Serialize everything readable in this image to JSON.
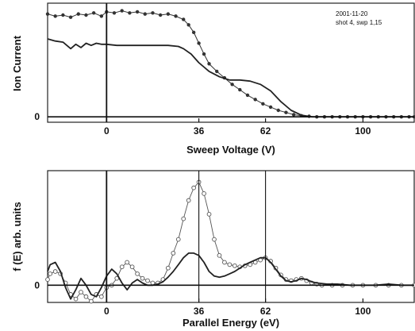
{
  "chart_data": [
    {
      "type": "line",
      "annotation_lines": [
        "2001-11-20",
        "shot 4, swp 1,15"
      ],
      "xlabel": "Sweep Voltage (V)",
      "ylabel": "Ion Current",
      "xlim": [
        -23,
        120
      ],
      "ylim": [
        -0.05,
        1.05
      ],
      "xticks": [
        0,
        36,
        62,
        100
      ],
      "yticks": [
        0
      ],
      "vlines": [
        0
      ],
      "series": [
        {
          "style": "dotted",
          "x": [
            -23,
            -20,
            -17,
            -14,
            -11,
            -8,
            -5,
            -2,
            0,
            3,
            6,
            9,
            12,
            15,
            18,
            21,
            24,
            27,
            30,
            32,
            34,
            36,
            38,
            40,
            43,
            46,
            49,
            52,
            55,
            58,
            61,
            64,
            67,
            70,
            73,
            76,
            79,
            82,
            85,
            88,
            91,
            94,
            97,
            100,
            103,
            106,
            109,
            112,
            115,
            118,
            120
          ],
          "y": [
            0.95,
            0.93,
            0.94,
            0.92,
            0.95,
            0.94,
            0.96,
            0.93,
            0.97,
            0.96,
            0.98,
            0.96,
            0.97,
            0.95,
            0.96,
            0.94,
            0.95,
            0.93,
            0.9,
            0.85,
            0.78,
            0.68,
            0.58,
            0.49,
            0.42,
            0.36,
            0.3,
            0.25,
            0.2,
            0.16,
            0.12,
            0.09,
            0.06,
            0.04,
            0.02,
            0.01,
            0.005,
            0.0,
            0.0,
            0.0,
            0.0,
            0.0,
            0.0,
            0.0,
            0.0,
            0.0,
            0.0,
            0.0,
            0.0,
            0.0,
            0.0
          ]
        },
        {
          "style": "solid",
          "x": [
            -23,
            -20,
            -17,
            -14,
            -12,
            -10,
            -8,
            -6,
            -4,
            -2,
            0,
            4,
            8,
            12,
            16,
            20,
            24,
            28,
            30,
            33,
            36,
            40,
            44,
            48,
            52,
            56,
            60,
            64,
            68,
            72,
            76,
            80,
            84,
            88,
            92,
            96,
            100,
            105,
            110,
            115,
            120
          ],
          "y": [
            0.72,
            0.7,
            0.69,
            0.63,
            0.67,
            0.64,
            0.68,
            0.66,
            0.68,
            0.67,
            0.67,
            0.66,
            0.66,
            0.66,
            0.66,
            0.66,
            0.66,
            0.65,
            0.63,
            0.58,
            0.5,
            0.42,
            0.37,
            0.34,
            0.34,
            0.33,
            0.3,
            0.24,
            0.14,
            0.06,
            0.015,
            0.0,
            0.0,
            0.0,
            0.0,
            0.0,
            0.0,
            0.0,
            0.0,
            0.0,
            0.0
          ]
        }
      ]
    },
    {
      "type": "line",
      "xlabel": "Parallel Energy (eV)",
      "ylabel": "f (E) arb. units",
      "xlim": [
        -23,
        120
      ],
      "ylim": [
        -0.15,
        1.0
      ],
      "xticks": [
        0,
        36,
        62,
        100
      ],
      "yticks": [
        0
      ],
      "vlines": [
        0,
        36,
        62
      ],
      "series": [
        {
          "style": "circles",
          "x": [
            -23,
            -22,
            -20,
            -18,
            -16,
            -14,
            -12,
            -10,
            -8,
            -6,
            -4,
            -2,
            0,
            2,
            4,
            6,
            8,
            10,
            12,
            14,
            16,
            18,
            20,
            22,
            24,
            26,
            28,
            30,
            32,
            34,
            36,
            38,
            40,
            42,
            44,
            46,
            48,
            50,
            52,
            54,
            56,
            58,
            60,
            62,
            64,
            66,
            68,
            70,
            72,
            74,
            76,
            78,
            80,
            82,
            84,
            88,
            92,
            96,
            100,
            105,
            110,
            115,
            120
          ],
          "y": [
            0.05,
            0.1,
            0.12,
            0.1,
            0.02,
            -0.08,
            -0.12,
            -0.06,
            -0.1,
            -0.14,
            -0.08,
            -0.1,
            -0.02,
            0.0,
            0.06,
            0.16,
            0.2,
            0.16,
            0.1,
            0.06,
            0.04,
            0.02,
            0.02,
            0.05,
            0.15,
            0.28,
            0.4,
            0.58,
            0.74,
            0.85,
            0.9,
            0.8,
            0.62,
            0.4,
            0.26,
            0.2,
            0.18,
            0.17,
            0.16,
            0.17,
            0.18,
            0.2,
            0.22,
            0.24,
            0.21,
            0.15,
            0.09,
            0.05,
            0.04,
            0.05,
            0.06,
            0.04,
            0.02,
            0.01,
            0.0,
            0.0,
            0.0,
            0.0,
            0.0,
            0.0,
            0.0,
            0.0,
            0.0
          ]
        },
        {
          "style": "solid",
          "x": [
            -23,
            -22,
            -20,
            -18,
            -16,
            -14,
            -12,
            -10,
            -8,
            -6,
            -4,
            -2,
            0,
            2,
            4,
            6,
            8,
            10,
            12,
            14,
            16,
            18,
            20,
            22,
            24,
            26,
            28,
            30,
            32,
            34,
            36,
            38,
            40,
            42,
            44,
            46,
            48,
            50,
            52,
            54,
            56,
            58,
            60,
            62,
            64,
            66,
            68,
            70,
            72,
            74,
            76,
            78,
            80,
            82,
            86,
            90,
            95,
            100,
            105,
            110,
            115,
            120
          ],
          "y": [
            0.12,
            0.18,
            0.2,
            0.12,
            -0.02,
            -0.12,
            -0.04,
            0.06,
            0.0,
            -0.08,
            -0.1,
            -0.02,
            0.08,
            0.14,
            0.1,
            0.02,
            -0.04,
            0.02,
            0.05,
            0.02,
            0.0,
            0.0,
            0.01,
            0.03,
            0.07,
            0.12,
            0.18,
            0.24,
            0.28,
            0.28,
            0.26,
            0.2,
            0.12,
            0.08,
            0.07,
            0.08,
            0.1,
            0.12,
            0.15,
            0.18,
            0.2,
            0.22,
            0.24,
            0.24,
            0.2,
            0.14,
            0.08,
            0.04,
            0.03,
            0.04,
            0.06,
            0.05,
            0.03,
            0.02,
            0.01,
            0.01,
            0.0,
            0.0,
            0.0,
            0.01,
            0.0,
            0.0
          ]
        }
      ]
    }
  ]
}
